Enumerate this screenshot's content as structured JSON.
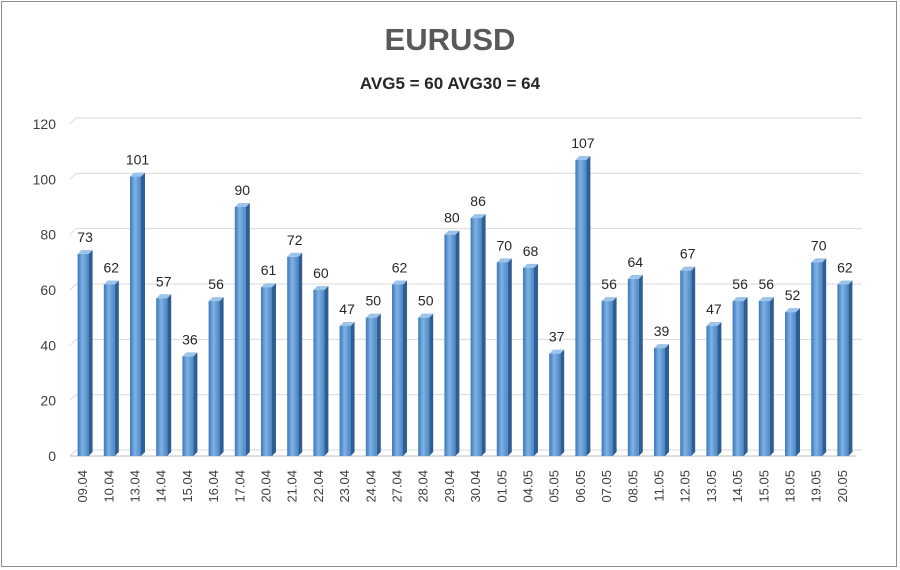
{
  "chart_data": {
    "type": "bar",
    "title": "EURUSD",
    "subtitle": "AVG5 = 60 AVG30 = 64",
    "categories": [
      "09.04",
      "10.04",
      "13.04",
      "14.04",
      "15.04",
      "16.04",
      "17.04",
      "20.04",
      "21.04",
      "22.04",
      "23.04",
      "24.04",
      "27.04",
      "28.04",
      "29.04",
      "30.04",
      "01.05",
      "04.05",
      "05.05",
      "06.05",
      "07.05",
      "08.05",
      "11.05",
      "12.05",
      "13.05",
      "14.05",
      "15.05",
      "18.05",
      "19.05",
      "20.05"
    ],
    "values": [
      73,
      62,
      101,
      57,
      36,
      56,
      90,
      61,
      72,
      60,
      47,
      50,
      62,
      50,
      80,
      86,
      70,
      68,
      37,
      107,
      56,
      64,
      39,
      67,
      47,
      56,
      56,
      52,
      70,
      62
    ],
    "ylim": [
      0,
      120
    ],
    "yticks": [
      0,
      20,
      40,
      60,
      80,
      100,
      120
    ],
    "grid": true,
    "data_labels": true,
    "bar_color": "#5b9bd5"
  }
}
